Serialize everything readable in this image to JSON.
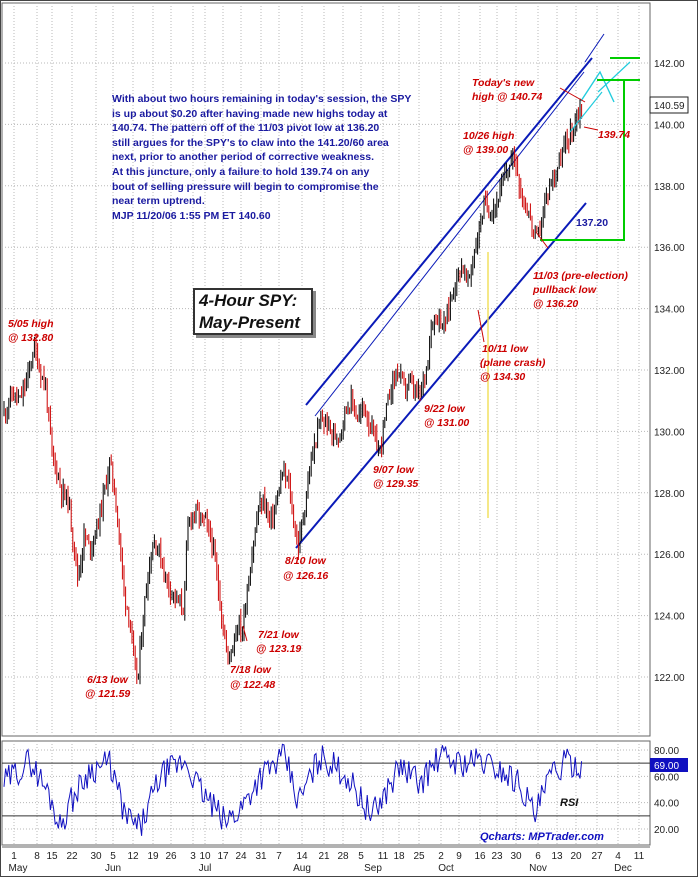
{
  "commentary": {
    "lines": [
      "With about two hours remaining in today's session, the SPY",
      "is up about $0.20 after having made new highs today at",
      "140.74. The pattern off of the 11/03 pivot low at 136.20",
      "still argues for the SPY's to claw into the 141.20/60 area",
      "next, prior to another period of corrective weakness.",
      "At this juncture, only a failure to hold 139.74 on any",
      "bout of selling pressure will begin to compromise the",
      "near term uptrend.",
      "MJP  11/20/06 1:55 PM ET  140.60"
    ]
  },
  "title": {
    "line1": "4-Hour SPY:",
    "line2": "May-Present"
  },
  "source": "Qcharts: MPTrader.com",
  "colors": {
    "candle_up": "#000000",
    "candle_down": "#cc0000",
    "channel": "#0a1ab8",
    "target_box": "#00cc00",
    "target_channel": "#22ccdd",
    "annotation": "#cc0000",
    "commentary": "#1a1aa0",
    "rsi": "#1010c0",
    "marker_line": "#f2e060"
  },
  "chart_data": [
    {
      "type": "candlestick",
      "title": "4-Hour SPY: May-Present",
      "ylim": [
        120.6,
        143.0
      ],
      "yticks": [
        122.0,
        124.0,
        126.0,
        128.0,
        130.0,
        132.0,
        134.0,
        136.0,
        138.0,
        140.0,
        142.0
      ],
      "last_price": "140.59",
      "x_tick_labels": [
        "1",
        "8",
        "15",
        "22",
        "30",
        "5",
        "12",
        "19",
        "26",
        "3",
        "10",
        "17",
        "24",
        "31",
        "7",
        "14",
        "21",
        "28",
        "5",
        "11",
        "18",
        "25",
        "2",
        "9",
        "16",
        "23",
        "30",
        "6",
        "13",
        "20",
        "27",
        "4",
        "11"
      ],
      "month_labels": [
        "May",
        "Jun",
        "Jul",
        "Aug",
        "Sep",
        "Oct",
        "Nov",
        "Dec"
      ],
      "pivots": [
        {
          "date": "5/05",
          "value": 132.8
        },
        {
          "date": "6/13",
          "value": 121.59
        },
        {
          "date": "7/18",
          "value": 122.48
        },
        {
          "date": "7/21",
          "value": 123.19
        },
        {
          "date": "8/10",
          "value": 126.16
        },
        {
          "date": "9/07",
          "value": 129.35
        },
        {
          "date": "9/22",
          "value": 131.0
        },
        {
          "date": "10/11",
          "value": 134.3
        },
        {
          "date": "10/26",
          "value": 139.0
        },
        {
          "date": "11/03",
          "value": 136.2
        },
        {
          "date": "11/20",
          "value": 140.74
        }
      ],
      "levels": [
        {
          "label": "139.74",
          "value": 139.74
        },
        {
          "label": "137.20",
          "value": 137.2
        }
      ],
      "target_area": [
        141.2,
        141.6
      ]
    },
    {
      "type": "line",
      "ylabel": "RSI",
      "ylim": [
        10,
        90
      ],
      "yticks": [
        20.0,
        40.0,
        60.0,
        80.0
      ],
      "hlines": [
        30,
        70
      ],
      "last_value": "69.00"
    }
  ],
  "annotations": {
    "may05": {
      "line1": "5/05 high",
      "line2": "@ 132.80"
    },
    "jun13": {
      "line1": "6/13 low",
      "line2": "@ 121.59"
    },
    "jul18": {
      "line1": "7/18 low",
      "line2": "@ 122.48"
    },
    "jul21": {
      "line1": "7/21 low",
      "line2": "@ 123.19"
    },
    "aug10": {
      "line1": "8/10 low",
      "line2": "@ 126.16"
    },
    "sep07": {
      "line1": "9/07 low",
      "line2": "@ 129.35"
    },
    "sep22": {
      "line1": "9/22 low",
      "line2": "@ 131.00"
    },
    "oct11": {
      "line1": "10/11 low",
      "line2": "(plane crash)",
      "line3": "@ 134.30"
    },
    "oct26": {
      "line1": "10/26 high",
      "line2": "@ 139.00"
    },
    "nov03": {
      "line1": "11/03 (pre-election)",
      "line2": "pullback low",
      "line3": "@ 136.20"
    },
    "today": {
      "line1": "Today's new",
      "line2": "high @ 140.74"
    },
    "lvl13974": "139.74",
    "lvl13720": "137.20",
    "rsi_label": "RSI"
  }
}
